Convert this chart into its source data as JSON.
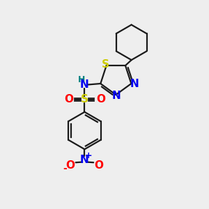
{
  "bg_color": "#eeeeee",
  "bond_color": "#1a1a1a",
  "bond_width": 1.6,
  "atom_colors": {
    "S_thiadiazole": "#cccc00",
    "S_sulfonyl": "#cccc00",
    "N": "#0000ee",
    "O": "#ff0000",
    "H": "#008080",
    "C": "#1a1a1a"
  },
  "font_size": 10,
  "figsize": [
    3.0,
    3.0
  ],
  "dpi": 100,
  "xlim": [
    0,
    10
  ],
  "ylim": [
    0,
    10
  ]
}
